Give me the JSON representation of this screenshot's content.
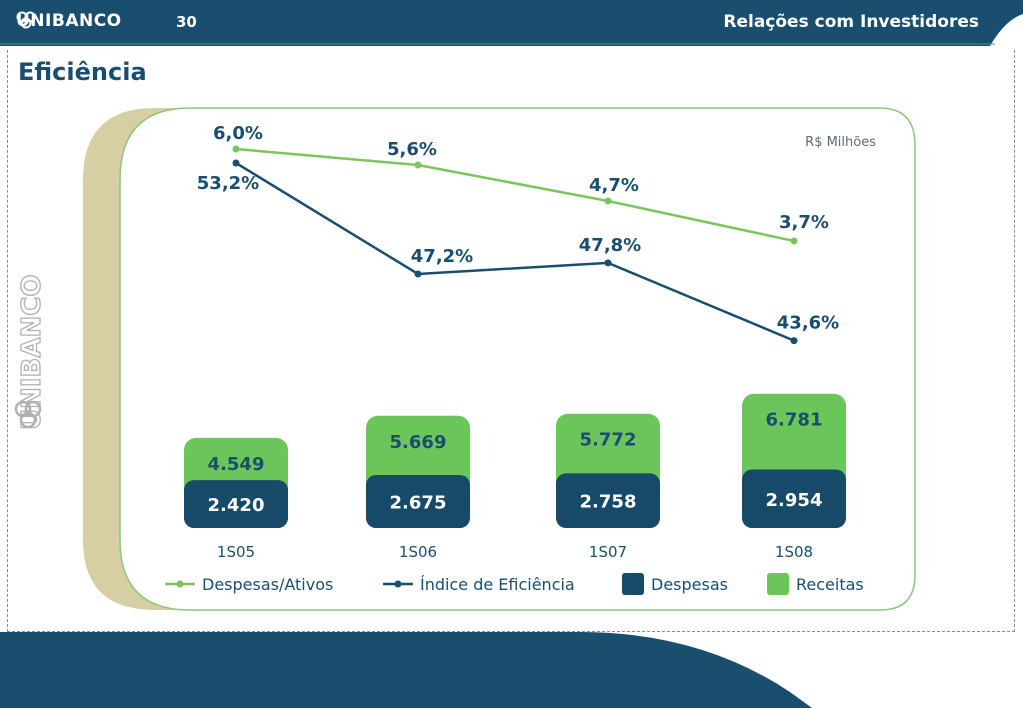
{
  "header": {
    "brand": "UNIBANCO",
    "page_number": "30",
    "section": "Relações com Investidores"
  },
  "page": {
    "title": "Eficiência"
  },
  "colors": {
    "navy": "#1a4e6e",
    "green_light": "#6cc55a",
    "green_line": "#7cc55e",
    "beige": "#d6cfa3"
  },
  "chart_data": {
    "type": "bar",
    "unit_label": "R$ Milhões",
    "categories": [
      "1S05",
      "1S06",
      "1S07",
      "1S08"
    ],
    "series": [
      {
        "name": "Despesas",
        "kind": "bar",
        "values": [
          2420,
          2675,
          2758,
          2954
        ],
        "labels": [
          "2.420",
          "2.675",
          "2.758",
          "2.954"
        ],
        "color": "#174a68"
      },
      {
        "name": "Receitas",
        "kind": "bar",
        "values": [
          4549,
          5669,
          5772,
          6781
        ],
        "labels": [
          "4.549",
          "5.669",
          "5.772",
          "6.781"
        ],
        "color": "#6cc55a"
      },
      {
        "name": "Despesas/Ativos",
        "kind": "line",
        "values": [
          6.0,
          5.6,
          4.7,
          3.7
        ],
        "labels": [
          "6,0%",
          "5,6%",
          "4,7%",
          "3,7%"
        ],
        "color": "#7cc55e"
      },
      {
        "name": "Índice de Eficiência",
        "kind": "line",
        "values": [
          53.2,
          47.2,
          47.8,
          43.6
        ],
        "labels": [
          "53,2%",
          "47,2%",
          "47,8%",
          "43,6%"
        ],
        "color": "#1a4e6e"
      }
    ],
    "legend": [
      {
        "name": "Despesas/Ativos",
        "marker": "line",
        "color": "#7cc55e"
      },
      {
        "name": "Índice de Eficiência",
        "marker": "line",
        "color": "#1a4e6e"
      },
      {
        "name": "Despesas",
        "marker": "box",
        "color": "#174a68"
      },
      {
        "name": "Receitas",
        "marker": "box",
        "color": "#6cc55a"
      }
    ],
    "legend_position": "bottom"
  }
}
